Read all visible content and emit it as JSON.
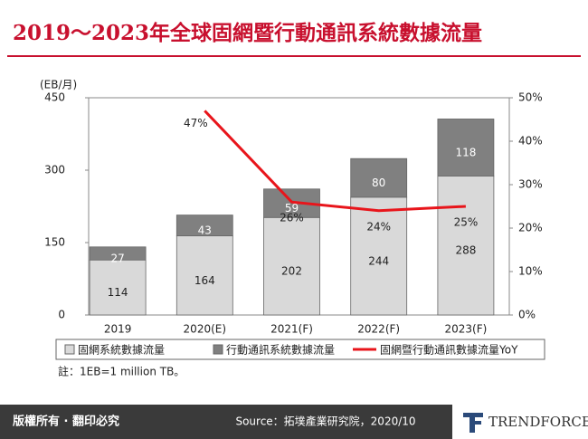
{
  "chart_data": {
    "type": "bar",
    "stacked": true,
    "title": "2019～2023年全球固網暨行動通訊系統數據流量",
    "ylabel": "(EB/月)",
    "categories": [
      "2019",
      "2020(E)",
      "2021(F)",
      "2022(F)",
      "2023(F)"
    ],
    "series": [
      {
        "name": "固網系統數據流量",
        "color": "#d9d9d9",
        "values": [
          114,
          164,
          202,
          244,
          288
        ]
      },
      {
        "name": "行動通訊系統數據流量",
        "color": "#808080",
        "values": [
          27,
          43,
          59,
          80,
          118
        ]
      },
      {
        "name": "固網暨行動通訊數據流量YoY",
        "type": "line",
        "axis": "y2",
        "color": "#e8151b",
        "values": [
          null,
          47,
          26,
          24,
          25
        ],
        "value_labels": [
          null,
          "47%",
          "26%",
          "24%",
          "25%"
        ]
      }
    ],
    "ylim": [
      0,
      450
    ],
    "yticks": [
      0,
      150,
      300,
      450
    ],
    "y2lim": [
      0,
      50
    ],
    "y2ticks": [
      {
        "value": 0,
        "label": "0%"
      },
      {
        "value": 10,
        "label": "10%"
      },
      {
        "value": 20,
        "label": "20%"
      },
      {
        "value": 30,
        "label": "30%"
      },
      {
        "value": 40,
        "label": "40%"
      },
      {
        "value": 50,
        "label": "50%"
      }
    ],
    "note": "註：1EB=1 million TB。"
  },
  "footer": {
    "copyright": "版權所有 · 翻印必究",
    "source": "Source：拓墣產業研究院，2020/10",
    "logo": "TRENDFORCE"
  }
}
